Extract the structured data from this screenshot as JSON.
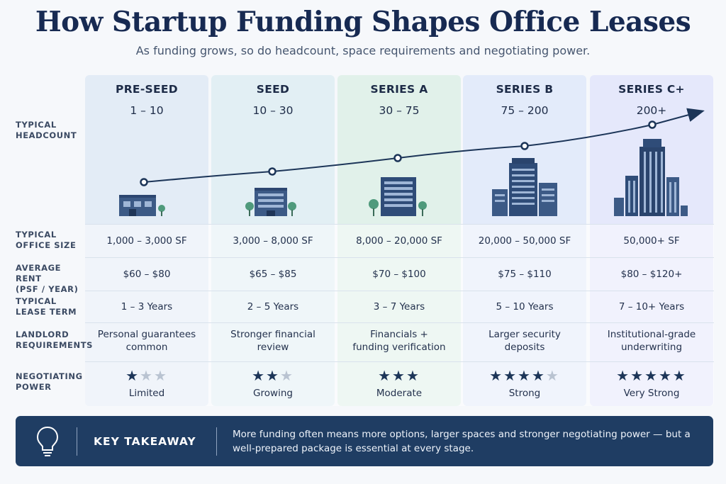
{
  "title": "How Startup Funding Shapes Office Leases",
  "subtitle": "As funding grows, so do headcount, space requirements and negotiating power.",
  "row_labels": {
    "headcount": [
      "TYPICAL",
      "HEADCOUNT"
    ],
    "office_size": [
      "TYPICAL",
      "OFFICE SIZE"
    ],
    "rent": [
      "AVERAGE RENT",
      "(PSF / YEAR)"
    ],
    "lease_term": [
      "TYPICAL",
      "LEASE TERM"
    ],
    "landlord": [
      "LANDLORD",
      "REQUIREMENTS"
    ],
    "negotiating": [
      "NEGOTIATING",
      "POWER"
    ]
  },
  "stages": [
    {
      "name": "PRE-SEED",
      "headcount": "1 – 10",
      "office_size": "1,000 – 3,000 SF",
      "rent": "$60 – $80",
      "lease_term": "1 – 3 Years",
      "landlord": [
        "Personal guarantees",
        "common"
      ],
      "stars": 1,
      "power": "Limited",
      "color": "#e3ecf6"
    },
    {
      "name": "SEED",
      "headcount": "10 – 30",
      "office_size": "3,000 – 8,000 SF",
      "rent": "$65 – $85",
      "lease_term": "2 – 5 Years",
      "landlord": [
        "Stronger financial",
        "review"
      ],
      "stars": 2,
      "power": "Growing",
      "color": "#e2eff4"
    },
    {
      "name": "SERIES A",
      "headcount": "30 – 75",
      "office_size": "8,000 – 20,000 SF",
      "rent": "$70 – $100",
      "lease_term": "3 – 7 Years",
      "landlord": [
        "Financials +",
        "funding verification"
      ],
      "stars": 3,
      "power": "Moderate",
      "color": "#e1f1ea"
    },
    {
      "name": "SERIES B",
      "headcount": "75 – 200",
      "office_size": "20,000 – 50,000 SF",
      "rent": "$75 – $110",
      "lease_term": "5 – 10 Years",
      "landlord": [
        "Larger security",
        "deposits"
      ],
      "stars": 4,
      "power": "Strong",
      "color": "#e3ebfa"
    },
    {
      "name": "SERIES C+",
      "headcount": "200+",
      "office_size": "50,000+ SF",
      "rent": "$80 – $120+",
      "lease_term": "7 – 10+ Years",
      "landlord": [
        "Institutional-grade",
        "underwriting"
      ],
      "stars": 5,
      "power": "Very Strong",
      "color": "#e5e8fb"
    }
  ],
  "takeaway": {
    "icon": "lightbulb-icon",
    "label": "KEY TAKEAWAY",
    "text": "More funding often means more options, larger spaces and stronger negotiating power — but a well-prepared package is essential at every stage."
  },
  "colors": {
    "navy": "#1f3d63",
    "tree": "#4f9a7c",
    "building": "#3c5a86"
  }
}
